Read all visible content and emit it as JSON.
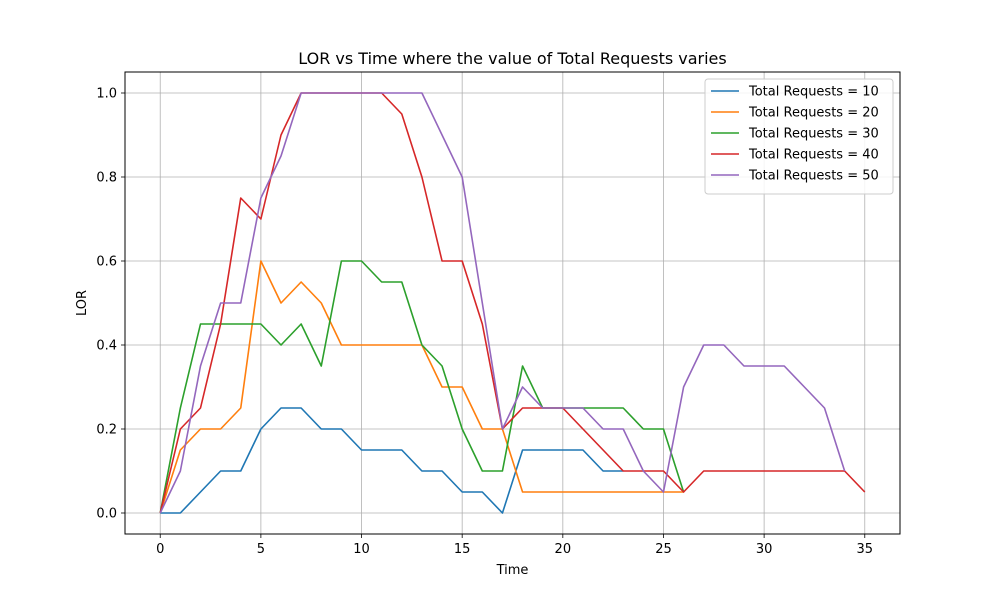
{
  "chart_data": {
    "type": "line",
    "title": "LOR vs Time where the value of Total Requests varies",
    "xlabel": "Time",
    "ylabel": "LOR",
    "xlim": [
      -1.75,
      36.75
    ],
    "ylim": [
      -0.05,
      1.05
    ],
    "xticks": [
      0,
      5,
      10,
      15,
      20,
      25,
      30,
      35
    ],
    "yticks": [
      0.0,
      0.2,
      0.4,
      0.6,
      0.8,
      1.0
    ],
    "xtick_labels": [
      "0",
      "5",
      "10",
      "15",
      "20",
      "25",
      "30",
      "35"
    ],
    "ytick_labels": [
      "0.0",
      "0.2",
      "0.4",
      "0.6",
      "0.8",
      "1.0"
    ],
    "grid": true,
    "legend_position": "top-right",
    "series": [
      {
        "name": "Total Requests = 10",
        "color": "#1f77b4",
        "x": [
          0,
          1,
          2,
          3,
          4,
          5,
          6,
          7,
          8,
          9,
          10,
          11,
          12,
          13,
          14,
          15,
          16,
          17,
          18,
          19,
          20,
          21,
          22,
          23
        ],
        "y": [
          0,
          0,
          0.05,
          0.1,
          0.1,
          0.2,
          0.25,
          0.25,
          0.2,
          0.2,
          0.15,
          0.15,
          0.15,
          0.1,
          0.1,
          0.05,
          0.05,
          0,
          0.15,
          0.15,
          0.15,
          0.15,
          0.1,
          0.1
        ]
      },
      {
        "name": "Total Requests = 20",
        "color": "#ff7f0e",
        "x": [
          0,
          1,
          2,
          3,
          4,
          5,
          6,
          7,
          8,
          9,
          10,
          11,
          12,
          13,
          14,
          15,
          16,
          17,
          18,
          19,
          20,
          21,
          22,
          23,
          24,
          25,
          26
        ],
        "y": [
          0,
          0.15,
          0.2,
          0.2,
          0.25,
          0.6,
          0.5,
          0.55,
          0.5,
          0.4,
          0.4,
          0.4,
          0.4,
          0.4,
          0.3,
          0.3,
          0.2,
          0.2,
          0.05,
          0.05,
          0.05,
          0.05,
          0.05,
          0.05,
          0.05,
          0.05,
          0.05
        ]
      },
      {
        "name": "Total Requests = 30",
        "color": "#2ca02c",
        "x": [
          0,
          1,
          2,
          3,
          4,
          5,
          6,
          7,
          8,
          9,
          10,
          11,
          12,
          13,
          14,
          15,
          16,
          17,
          18,
          19,
          20,
          21,
          22,
          23,
          24,
          25,
          26
        ],
        "y": [
          0,
          0.25,
          0.45,
          0.45,
          0.45,
          0.45,
          0.4,
          0.45,
          0.35,
          0.6,
          0.6,
          0.55,
          0.55,
          0.4,
          0.35,
          0.2,
          0.1,
          0.1,
          0.35,
          0.25,
          0.25,
          0.25,
          0.25,
          0.25,
          0.2,
          0.2,
          0.05
        ]
      },
      {
        "name": "Total Requests = 40",
        "color": "#d62728",
        "x": [
          0,
          1,
          2,
          3,
          4,
          5,
          6,
          7,
          8,
          9,
          10,
          11,
          12,
          13,
          14,
          15,
          16,
          17,
          18,
          19,
          20,
          21,
          22,
          23,
          24,
          25,
          26,
          27,
          28,
          29,
          30,
          31,
          32,
          33,
          34,
          35
        ],
        "y": [
          0,
          0.2,
          0.25,
          0.45,
          0.75,
          0.7,
          0.9,
          1.0,
          1.0,
          1.0,
          1.0,
          1.0,
          0.95,
          0.8,
          0.6,
          0.6,
          0.45,
          0.2,
          0.25,
          0.25,
          0.25,
          0.2,
          0.15,
          0.1,
          0.1,
          0.1,
          0.05,
          0.1,
          0.1,
          0.1,
          0.1,
          0.1,
          0.1,
          0.1,
          0.1,
          0.05
        ]
      },
      {
        "name": "Total Requests = 50",
        "color": "#9467bd",
        "x": [
          0,
          1,
          2,
          3,
          4,
          5,
          6,
          7,
          8,
          9,
          10,
          11,
          12,
          13,
          14,
          15,
          16,
          17,
          18,
          19,
          20,
          21,
          22,
          23,
          24,
          25,
          26,
          27,
          28,
          29,
          30,
          31,
          32,
          33,
          34
        ],
        "y": [
          0,
          0.1,
          0.35,
          0.5,
          0.5,
          0.75,
          0.85,
          1.0,
          1.0,
          1.0,
          1.0,
          1.0,
          1.0,
          1.0,
          0.9,
          0.8,
          0.5,
          0.2,
          0.3,
          0.25,
          0.25,
          0.25,
          0.2,
          0.2,
          0.1,
          0.05,
          0.3,
          0.4,
          0.4,
          0.35,
          0.35,
          0.35,
          0.3,
          0.25,
          0.1
        ]
      }
    ]
  }
}
